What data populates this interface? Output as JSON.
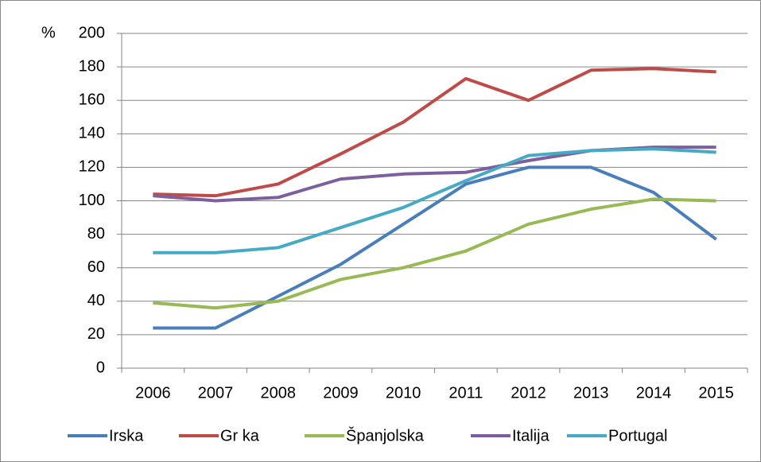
{
  "chart_data": {
    "type": "line",
    "y_unit_label": "%",
    "categories": [
      "2006",
      "2007",
      "2008",
      "2009",
      "2010",
      "2011",
      "2012",
      "2013",
      "2014",
      "2015"
    ],
    "series": [
      {
        "name": "Irska",
        "color": "#4a7ebb",
        "values": [
          24,
          24,
          43,
          62,
          86,
          110,
          120,
          120,
          105,
          77
        ]
      },
      {
        "name": "Gr ka",
        "color": "#be4b48",
        "values": [
          104,
          103,
          110,
          128,
          147,
          173,
          160,
          178,
          179,
          177
        ]
      },
      {
        "name": "Španjolska",
        "color": "#98b954",
        "values": [
          39,
          36,
          40,
          53,
          60,
          70,
          86,
          95,
          101,
          100
        ]
      },
      {
        "name": "Italija",
        "color": "#7d5fa0",
        "values": [
          103,
          100,
          102,
          113,
          116,
          117,
          124,
          130,
          132,
          132
        ]
      },
      {
        "name": "Portugal",
        "color": "#46aac5",
        "values": [
          69,
          69,
          72,
          84,
          96,
          112,
          127,
          130,
          131,
          129
        ]
      }
    ],
    "ylim": [
      0,
      200
    ],
    "yticks": [
      0,
      20,
      40,
      60,
      80,
      100,
      120,
      140,
      160,
      180,
      200
    ],
    "grid": true,
    "legend": "bottom"
  }
}
